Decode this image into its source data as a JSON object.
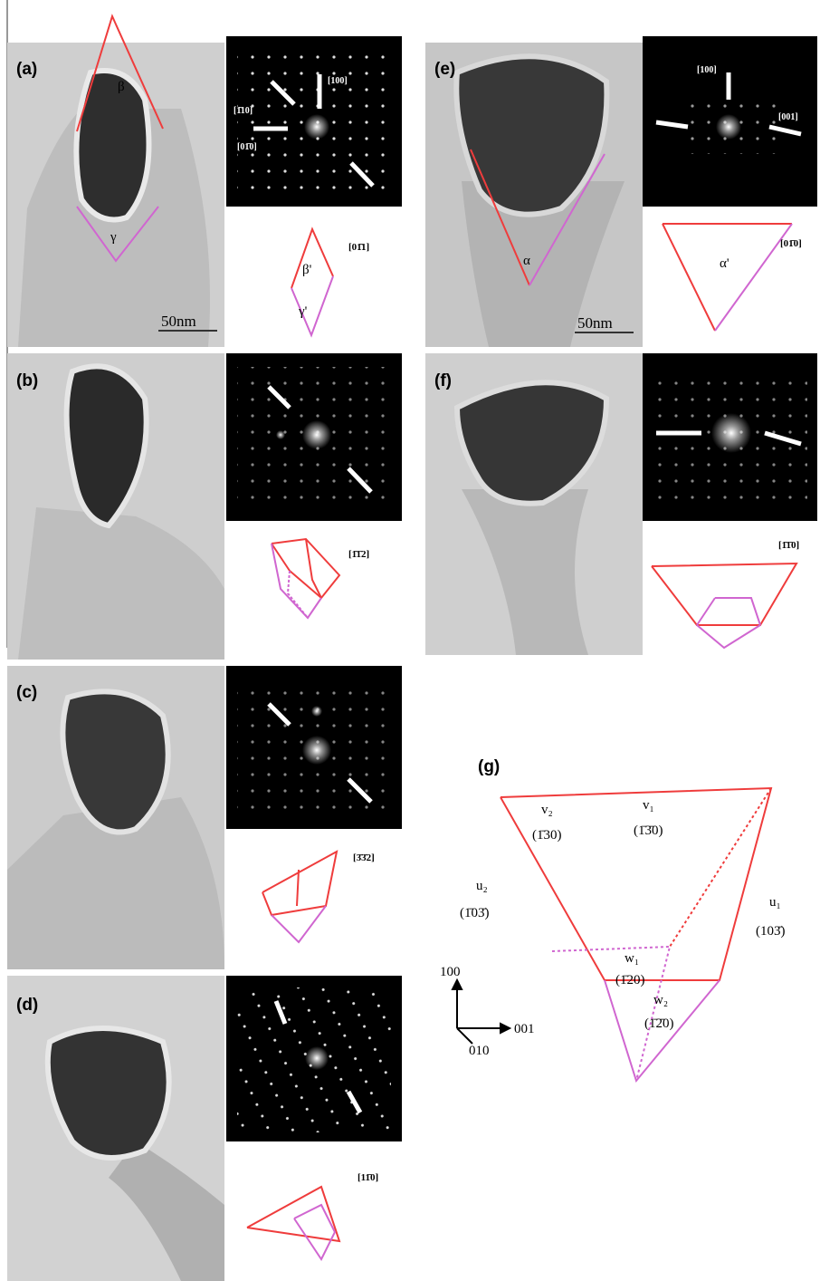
{
  "panels": {
    "a": {
      "label": "(a)",
      "image_labels": [
        "β",
        "γ"
      ],
      "scale_bar": "50nm",
      "diffraction_labels": [
        "[1̄10]",
        "[100]",
        "[01̄0]"
      ],
      "zone_axis": "[01̄1]",
      "schematic_labels": [
        "β'",
        "γ'"
      ]
    },
    "b": {
      "label": "(b)",
      "zone_axis": "[1̄1̄2]"
    },
    "c": {
      "label": "(c)",
      "zone_axis": "[3̄3̄2]"
    },
    "d": {
      "label": "(d)",
      "zone_axis": "[11̄0]"
    },
    "e": {
      "label": "(e)",
      "image_labels": [
        "α"
      ],
      "scale_bar": "50nm",
      "diffraction_labels": [
        "[100]",
        "[001]"
      ],
      "zone_axis": "[01̄0]",
      "schematic_labels": [
        "α'"
      ]
    },
    "f": {
      "label": "(f)",
      "zone_axis": "[1̄1̄0]"
    },
    "g": {
      "label": "(g)",
      "faces": [
        {
          "name": "v₂",
          "index": "(1̄30)"
        },
        {
          "name": "v₁",
          "index": "(1̄3̄0)"
        },
        {
          "name": "u₂",
          "index": "(1̄03̄)"
        },
        {
          "name": "u₁",
          "index": "(103̄)"
        },
        {
          "name": "w₁",
          "index": "(1̄20)"
        },
        {
          "name": "w₂",
          "index": "(1̄2̄0)"
        }
      ],
      "axes": [
        "100",
        "001",
        "010"
      ]
    }
  }
}
